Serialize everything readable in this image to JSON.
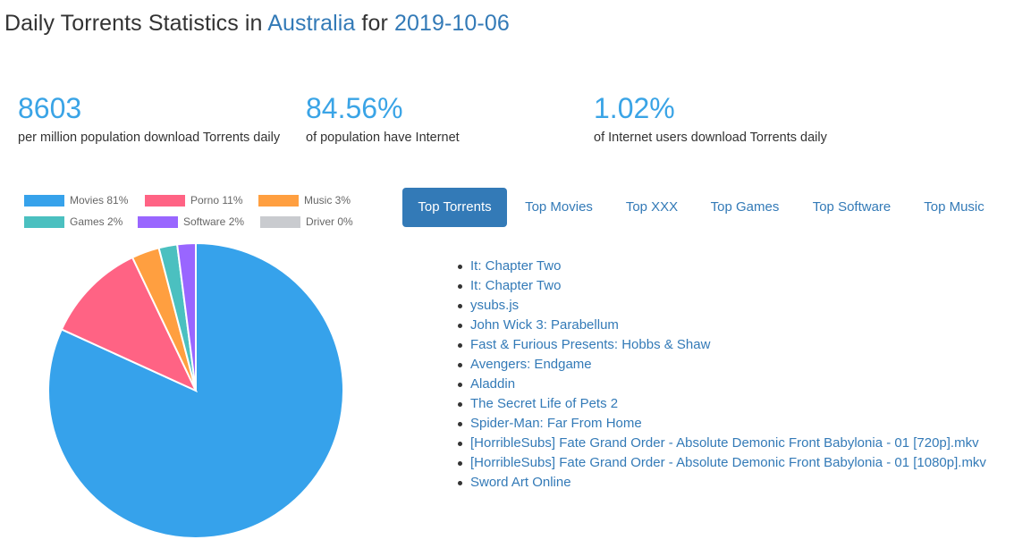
{
  "title": {
    "prefix": "Daily Torrents Statistics in ",
    "country": "Australia",
    "middle": " for ",
    "date": "2019-10-06"
  },
  "stats": [
    {
      "value": "8603",
      "label": "per million population download Torrents daily"
    },
    {
      "value": "84.56%",
      "label": "of population have Internet"
    },
    {
      "value": "1.02%",
      "label": "of Internet users download Torrents daily"
    }
  ],
  "legend": [
    {
      "label": "Movies 81%",
      "color": "#36a2eb"
    },
    {
      "label": "Porno 11%",
      "color": "#ff6384"
    },
    {
      "label": "Music 3%",
      "color": "#ff9f40"
    },
    {
      "label": "Games 2%",
      "color": "#4bc0c0"
    },
    {
      "label": "Software 2%",
      "color": "#9966ff"
    },
    {
      "label": "Driver 0%",
      "color": "#c9cbcf"
    }
  ],
  "chart_data": {
    "type": "pie",
    "categories": [
      "Movies",
      "Porno",
      "Music",
      "Games",
      "Software",
      "Driver"
    ],
    "values": [
      81,
      11,
      3,
      2,
      2,
      0
    ],
    "colors": [
      "#36a2eb",
      "#ff6384",
      "#ff9f40",
      "#4bc0c0",
      "#9966ff",
      "#c9cbcf"
    ],
    "legend_position": "top"
  },
  "tabs": [
    "Top Torrents",
    "Top Movies",
    "Top XXX",
    "Top Games",
    "Top Software",
    "Top Music"
  ],
  "active_tab": "Top Torrents",
  "torrents": [
    "It: Chapter Two",
    "It: Chapter Two",
    "ysubs.js",
    "John Wick 3: Parabellum",
    "Fast & Furious Presents: Hobbs & Shaw",
    "Avengers: Endgame",
    "Aladdin",
    "The Secret Life of Pets 2",
    "Spider-Man: Far From Home",
    "[HorribleSubs] Fate Grand Order - Absolute Demonic Front Babylonia - 01 [720p].mkv",
    "[HorribleSubs] Fate Grand Order - Absolute Demonic Front Babylonia - 01 [1080p].mkv",
    "Sword Art Online"
  ]
}
